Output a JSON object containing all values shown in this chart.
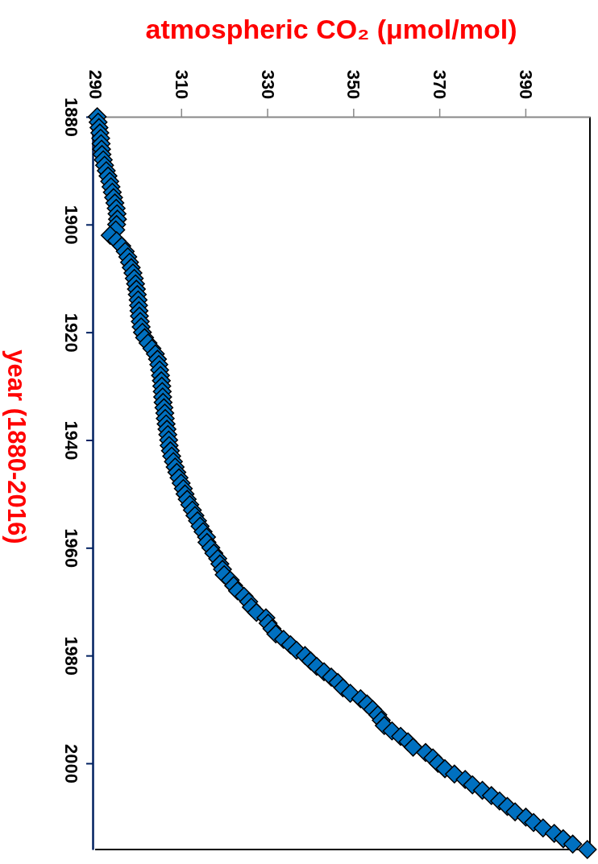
{
  "chart_data": {
    "type": "scatter",
    "xlabel": "atmospheric CO₂ (μmol/mol)",
    "ylabel": "year (1880-2016)",
    "xlim": [
      290,
      405
    ],
    "xticks": [
      290,
      310,
      330,
      350,
      370,
      390
    ],
    "ylim": [
      2016,
      1880
    ],
    "yticks": [
      1880,
      1900,
      1920,
      1940,
      1960,
      1980,
      2000
    ],
    "marker": "diamond",
    "x": [
      290.5,
      290.7,
      290.9,
      291.1,
      291.3,
      291.4,
      291.5,
      291.6,
      291.9,
      292.2,
      292.6,
      293.0,
      293.4,
      293.7,
      294.0,
      294.3,
      294.6,
      294.9,
      295.1,
      295.2,
      295.0,
      294.8,
      293.5,
      295.0,
      296.2,
      297.0,
      297.6,
      298.0,
      298.4,
      298.8,
      299.1,
      299.4,
      299.6,
      299.8,
      300.0,
      300.1,
      300.2,
      300.3,
      300.5,
      300.7,
      301.0,
      301.5,
      302.3,
      303.2,
      304.0,
      304.5,
      304.8,
      305.0,
      305.2,
      305.4,
      305.5,
      305.6,
      305.7,
      305.8,
      306.0,
      306.2,
      306.3,
      306.5,
      306.7,
      306.9,
      307.1,
      307.2,
      307.5,
      307.8,
      308.2,
      308.6,
      309.0,
      309.5,
      310.0,
      310.5,
      310.9,
      311.4,
      312.0,
      312.6,
      313.2,
      313.8,
      314.4,
      315.1,
      315.9,
      316.0,
      316.9,
      317.6,
      318.5,
      319.0,
      319.6,
      320.0,
      321.4,
      322.2,
      323.1,
      324.6,
      325.7,
      326.3,
      327.5,
      329.7,
      330.2,
      331.1,
      332.0,
      333.8,
      335.4,
      336.8,
      338.8,
      340.1,
      341.5,
      343.2,
      344.9,
      346.4,
      347.6,
      349.3,
      351.7,
      353.2,
      354.5,
      355.7,
      356.5,
      357.2,
      359.0,
      361.0,
      362.7,
      363.9,
      366.8,
      368.5,
      369.7,
      371.3,
      373.5,
      376.0,
      377.7,
      380.0,
      382.1,
      384.0,
      385.8,
      387.6,
      390.1,
      391.9,
      394.1,
      396.7,
      398.8,
      401.0,
      404.4
    ],
    "series": [
      {
        "color": "#0070c0",
        "values": [
          1880,
          1881,
          1882,
          1883,
          1884,
          1885,
          1886,
          1887,
          1888,
          1889,
          1890,
          1891,
          1892,
          1893,
          1894,
          1895,
          1896,
          1897,
          1898,
          1899,
          1900,
          1901,
          1902,
          1903,
          1904,
          1905,
          1906,
          1907,
          1908,
          1909,
          1910,
          1911,
          1912,
          1913,
          1914,
          1915,
          1916,
          1917,
          1918,
          1919,
          1920,
          1921,
          1922,
          1923,
          1924,
          1925,
          1926,
          1927,
          1928,
          1929,
          1930,
          1931,
          1932,
          1933,
          1934,
          1935,
          1936,
          1937,
          1938,
          1939,
          1940,
          1941,
          1942,
          1943,
          1944,
          1945,
          1946,
          1947,
          1948,
          1949,
          1950,
          1951,
          1952,
          1953,
          1954,
          1955,
          1956,
          1957,
          1958,
          1959,
          1960,
          1961,
          1962,
          1963,
          1964,
          1965,
          1966,
          1967,
          1968,
          1969,
          1970,
          1971,
          1972,
          1973,
          1974,
          1975,
          1976,
          1977,
          1978,
          1979,
          1980,
          1981,
          1982,
          1983,
          1984,
          1985,
          1986,
          1987,
          1988,
          1989,
          1990,
          1991,
          1992,
          1993,
          1994,
          1995,
          1996,
          1997,
          1998,
          1999,
          2000,
          2001,
          2002,
          2003,
          2004,
          2005,
          2006,
          2007,
          2008,
          2009,
          2010,
          2011,
          2012,
          2013,
          2014,
          2015,
          2016
        ]
      }
    ]
  }
}
